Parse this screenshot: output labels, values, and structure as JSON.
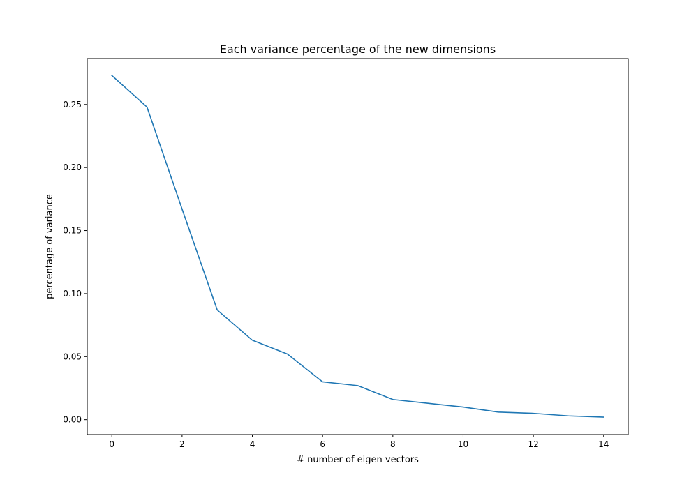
{
  "chart_data": {
    "type": "line",
    "title": "Each variance percentage of the new dimensions",
    "xlabel": "# number of eigen vectors",
    "ylabel": "percentage of variance",
    "xlim": [
      -0.7,
      14.7
    ],
    "ylim": [
      -0.0118,
      0.2864
    ],
    "xticks": [
      0,
      2,
      4,
      6,
      8,
      10,
      12,
      14
    ],
    "xtick_labels": [
      "0",
      "2",
      "4",
      "6",
      "8",
      "10",
      "12",
      "14"
    ],
    "yticks": [
      0.0,
      0.05,
      0.1,
      0.15,
      0.2,
      0.25
    ],
    "ytick_labels": [
      "0.00",
      "0.05",
      "0.10",
      "0.15",
      "0.20",
      "0.25"
    ],
    "grid": false,
    "legend": "none",
    "series": [
      {
        "color": "#1f77b4",
        "x": [
          0,
          1,
          2,
          3,
          4,
          5,
          6,
          7,
          8,
          9,
          10,
          11,
          12,
          13,
          14
        ],
        "y": [
          0.273,
          0.248,
          0.167,
          0.087,
          0.063,
          0.052,
          0.03,
          0.027,
          0.016,
          0.013,
          0.01,
          0.006,
          0.005,
          0.003,
          0.002
        ]
      }
    ]
  }
}
